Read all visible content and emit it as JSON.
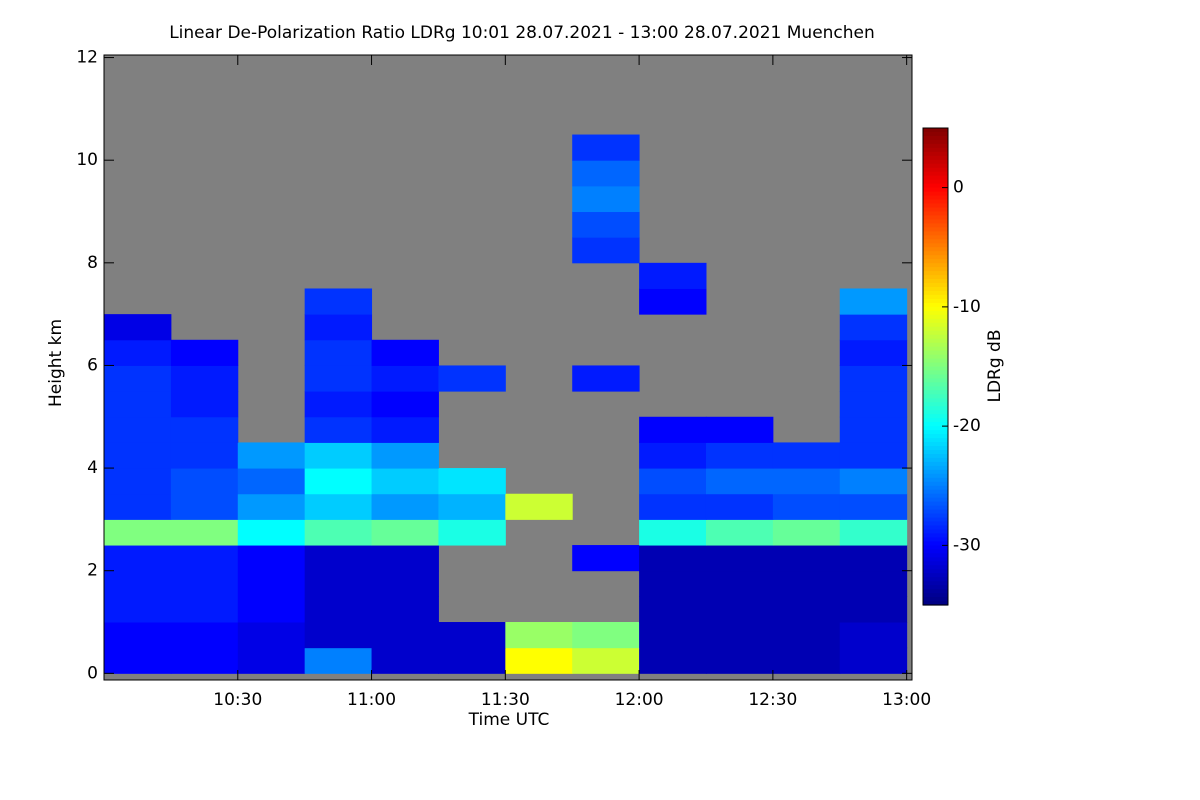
{
  "chart_data": {
    "type": "heatmap",
    "title": "Linear De-Polarization Ratio LDRg   10:01 28.07.2021 - 13:00 28.07.2021 Muenchen",
    "x_label": "Time UTC",
    "y_label": "Height km",
    "colorbar_label": "LDRg dB",
    "colormap": "jet",
    "missing_color": "#808080",
    "xlim": [
      10.0,
      13.02
    ],
    "xticks": [
      {
        "value": 10.5,
        "label": "10:30"
      },
      {
        "value": 11.0,
        "label": "11:00"
      },
      {
        "value": 11.5,
        "label": "11:30"
      },
      {
        "value": 12.0,
        "label": "12:00"
      },
      {
        "value": 12.5,
        "label": "12:30"
      },
      {
        "value": 13.0,
        "label": "13:00"
      }
    ],
    "ylim": [
      -0.13,
      12.05
    ],
    "yticks": [
      0,
      2,
      4,
      6,
      8,
      10,
      12
    ],
    "zlim": [
      -35,
      5
    ],
    "zticks": [
      0,
      -10,
      -20,
      -30
    ],
    "x": [
      10.125,
      10.375,
      10.625,
      10.875,
      11.125,
      11.375,
      11.625,
      11.875,
      12.125,
      12.375,
      12.625,
      12.875
    ],
    "y": [
      0.25,
      0.75,
      1.25,
      1.75,
      2.25,
      2.75,
      3.25,
      3.75,
      4.25,
      4.75,
      5.25,
      5.75,
      6.25,
      6.75,
      7.25,
      7.75,
      8.25,
      8.75,
      9.25,
      9.75,
      10.25,
      10.75,
      11.25,
      11.75
    ],
    "z": [
      [
        -30,
        -30,
        -31,
        -25,
        -32,
        -32,
        -10,
        -12,
        -33,
        -33,
        -33,
        -32
      ],
      [
        -30,
        -30,
        -31,
        -32,
        -32,
        -32,
        -14,
        -15,
        -33,
        -33,
        -33,
        -32
      ],
      [
        -29,
        -29,
        -30,
        -32,
        -32,
        null,
        null,
        null,
        -33,
        -33,
        -33,
        -33
      ],
      [
        -29,
        -29,
        -30,
        -32,
        -32,
        null,
        null,
        null,
        -33,
        -33,
        -33,
        -33
      ],
      [
        -29,
        -29,
        -30,
        -32,
        -32,
        null,
        null,
        -30,
        -33,
        -33,
        -33,
        -33
      ],
      [
        -15,
        -15,
        -20,
        -17,
        -16,
        -19,
        null,
        null,
        -19,
        -17,
        -16,
        -18
      ],
      [
        -28,
        -27,
        -24,
        -22,
        -24,
        -23,
        -12,
        null,
        -28,
        -28,
        -27,
        -27
      ],
      [
        -28,
        -27,
        -26,
        -20,
        -22,
        -21,
        null,
        null,
        -27,
        -26,
        -26,
        -25
      ],
      [
        -28,
        -28,
        -24,
        -22,
        -24,
        null,
        null,
        null,
        -29,
        -28,
        -28,
        -28
      ],
      [
        -28,
        -28,
        null,
        -28,
        -29,
        null,
        null,
        null,
        -30,
        -30,
        null,
        -28
      ],
      [
        -28,
        -29,
        null,
        -29,
        -30,
        null,
        null,
        null,
        null,
        null,
        null,
        -28
      ],
      [
        -28,
        -29,
        null,
        -28,
        -29,
        -28,
        null,
        -29,
        null,
        null,
        null,
        -28
      ],
      [
        -29,
        -30,
        null,
        -28,
        -30,
        null,
        null,
        null,
        null,
        null,
        null,
        -29
      ],
      [
        -31,
        null,
        null,
        -29,
        null,
        null,
        null,
        null,
        null,
        null,
        null,
        -28
      ],
      [
        null,
        null,
        null,
        -28,
        null,
        null,
        null,
        null,
        -30,
        null,
        null,
        -24
      ],
      [
        null,
        null,
        null,
        null,
        null,
        null,
        null,
        null,
        -29,
        null,
        null,
        null
      ],
      [
        null,
        null,
        null,
        null,
        null,
        null,
        null,
        -28,
        null,
        null,
        null,
        null
      ],
      [
        null,
        null,
        null,
        null,
        null,
        null,
        null,
        -27,
        null,
        null,
        null,
        null
      ],
      [
        null,
        null,
        null,
        null,
        null,
        null,
        null,
        -25,
        null,
        null,
        null,
        null
      ],
      [
        null,
        null,
        null,
        null,
        null,
        null,
        null,
        -26,
        null,
        null,
        null,
        null
      ],
      [
        null,
        null,
        null,
        null,
        null,
        null,
        null,
        -28,
        null,
        null,
        null,
        null
      ],
      [
        null,
        null,
        null,
        null,
        null,
        null,
        null,
        null,
        null,
        null,
        null,
        null
      ],
      [
        null,
        null,
        null,
        null,
        null,
        null,
        null,
        null,
        null,
        null,
        null,
        null
      ],
      [
        null,
        null,
        null,
        null,
        null,
        null,
        null,
        null,
        null,
        null,
        null,
        null
      ]
    ]
  }
}
